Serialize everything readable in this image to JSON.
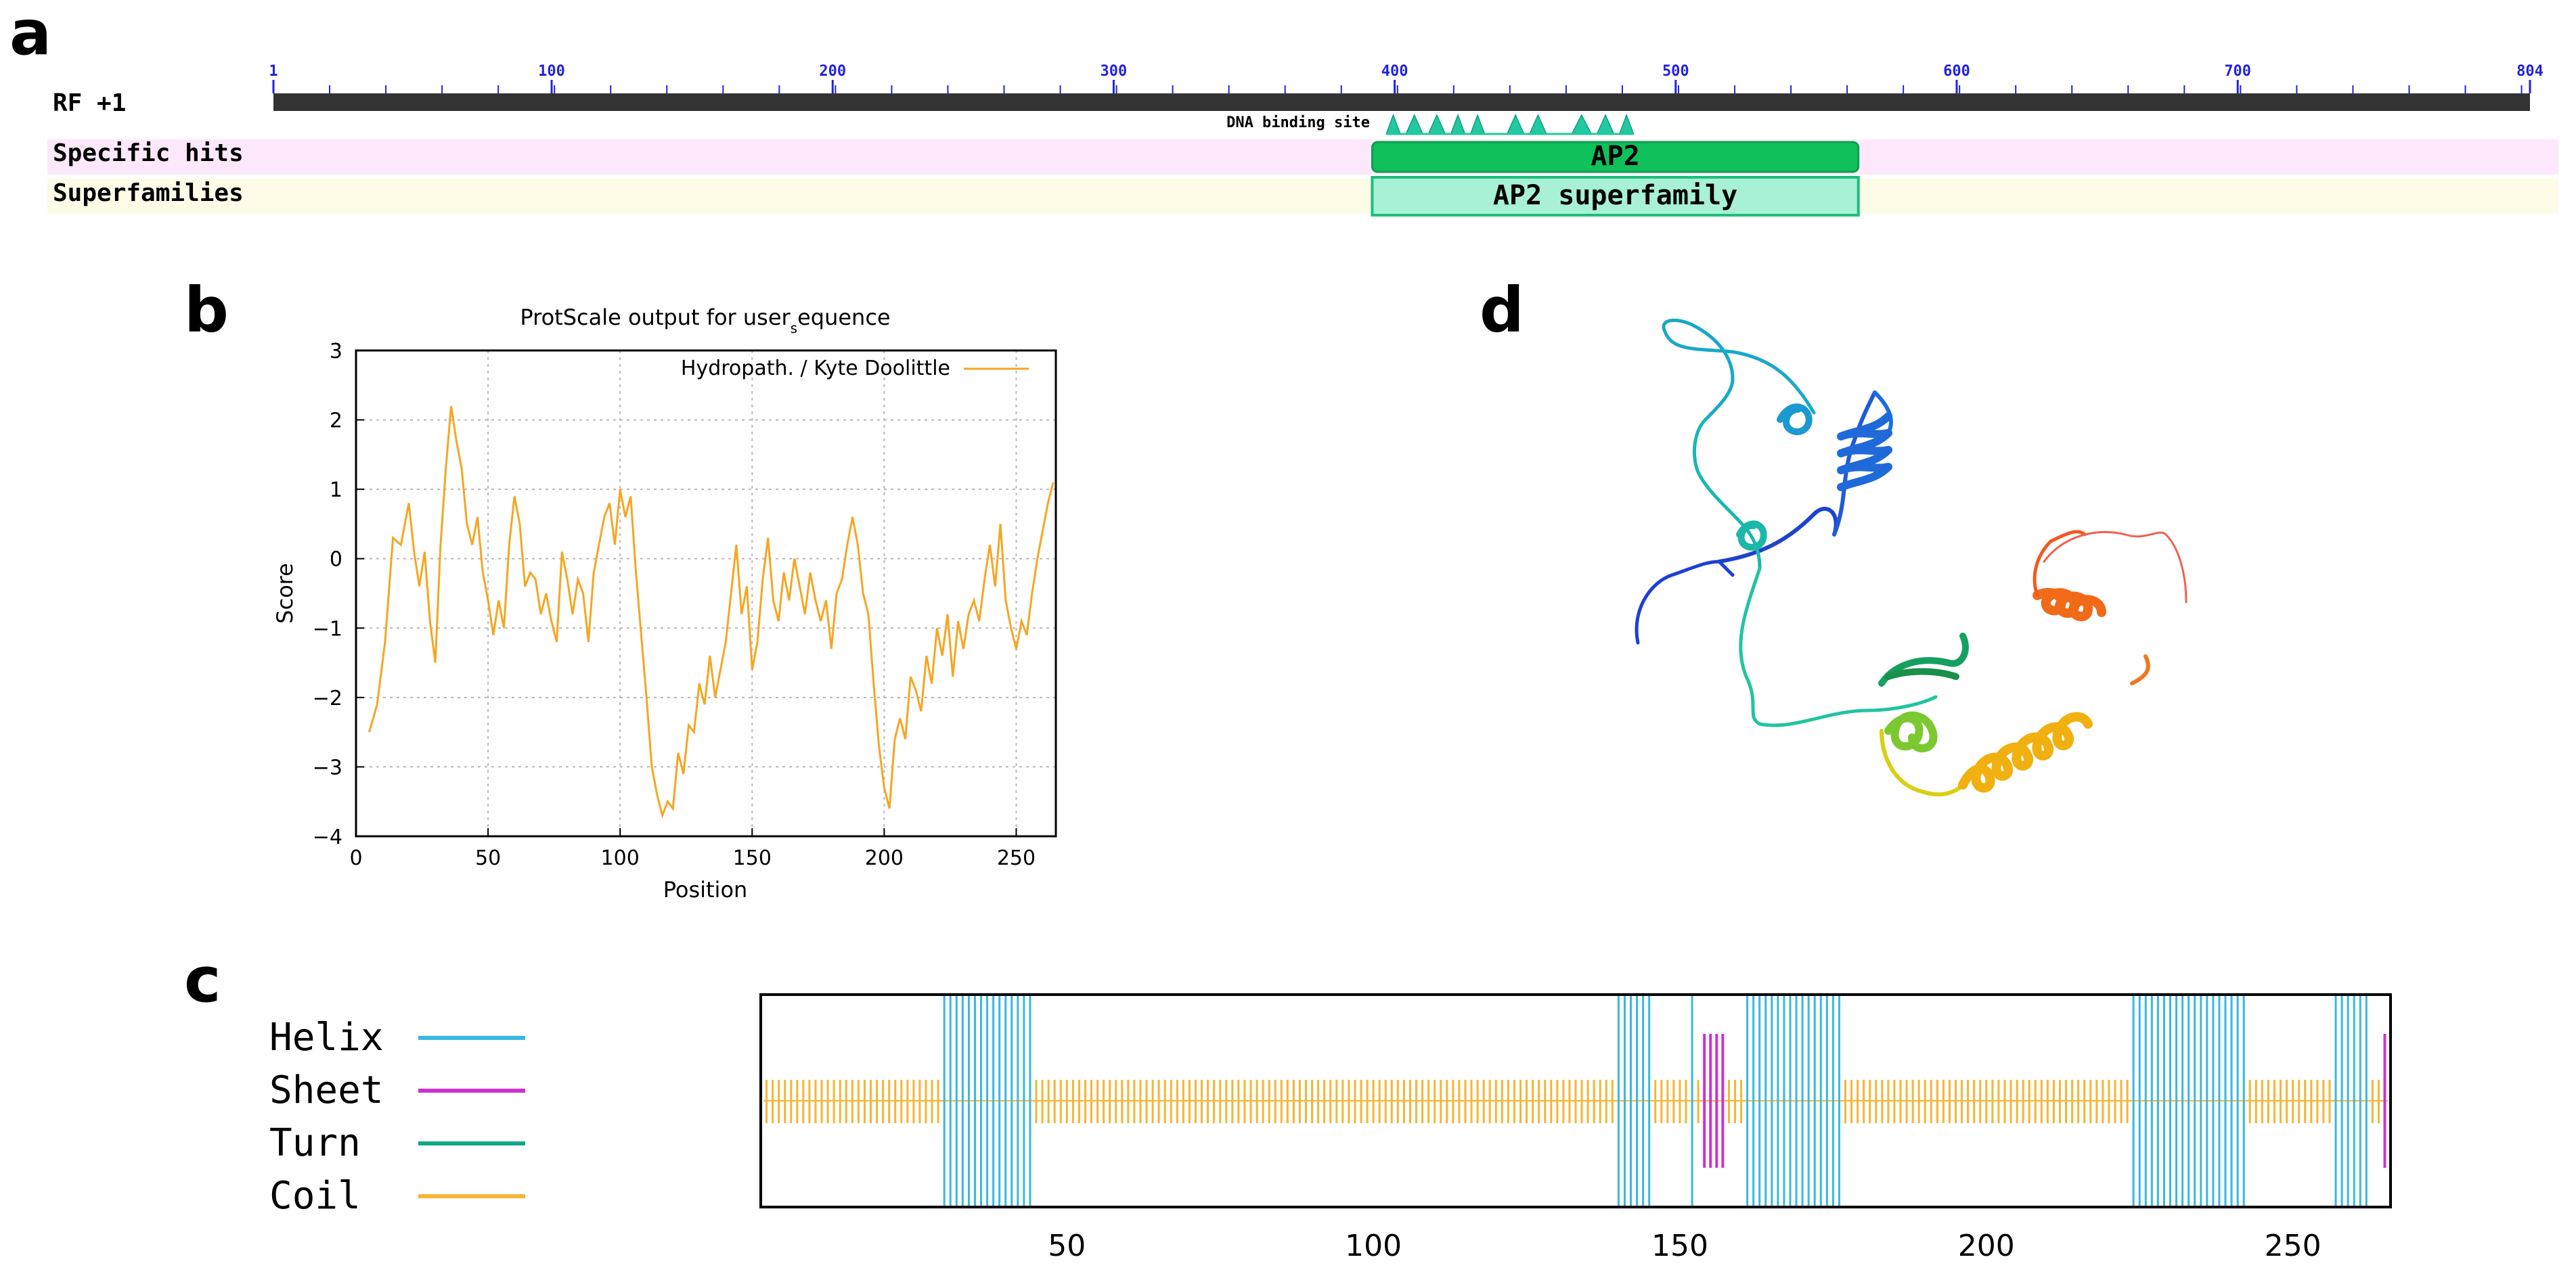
{
  "panel_a": {
    "letter": "a",
    "ruler_label": "RF +1",
    "ruler_ticks": [
      "1",
      "100",
      "200",
      "300",
      "400",
      "500",
      "600",
      "700",
      "804"
    ],
    "ruler_max": 804,
    "row_specific": "Specific hits",
    "row_super": "Superfamilies",
    "dna_label": "DNA binding site",
    "ap2_label": "AP2",
    "ap2_range": [
      392,
      565
    ],
    "super_label": "AP2 superfamily",
    "super_range": [
      392,
      565
    ],
    "dna_sites": [
      [
        397,
        402
      ],
      [
        404,
        410
      ],
      [
        412,
        418
      ],
      [
        420,
        425
      ],
      [
        427,
        432
      ],
      [
        440,
        446
      ],
      [
        448,
        454
      ],
      [
        463,
        470
      ],
      [
        472,
        478
      ],
      [
        480,
        485
      ]
    ],
    "colors": {
      "ap2": "#10c05a",
      "super": "#a8f0d6",
      "super_border": "#1ac07a",
      "site": "#22c8a0",
      "pink": "#fde8fb",
      "yellow": "#fefbe6"
    }
  },
  "panel_b": {
    "letter": "b",
    "title_main": "ProtScale output for user",
    "title_sub": "s",
    "title_tail": "equence",
    "legend": "Hydropath. / Kyte  Doolittle",
    "xlabel": "Position",
    "ylabel": "Score",
    "xticks": [
      "0",
      "50",
      "100",
      "150",
      "200",
      "250"
    ],
    "yticks": [
      "3",
      "2",
      "1",
      "0",
      "−1",
      "−2",
      "−3",
      "−4"
    ],
    "color": "#f5a623"
  },
  "chart_data": {
    "type": "line",
    "title": "ProtScale output for user_sequence",
    "xlabel": "Position",
    "ylabel": "Score",
    "xlim": [
      0,
      265
    ],
    "ylim": [
      -4,
      3
    ],
    "grid": true,
    "legend_position": "top-right",
    "series": [
      {
        "name": "Hydropath. / Kyte  Doolittle",
        "points": [
          [
            5,
            -2.5
          ],
          [
            8,
            -2.1
          ],
          [
            11,
            -1.2
          ],
          [
            14,
            0.3
          ],
          [
            17,
            0.2
          ],
          [
            20,
            0.8
          ],
          [
            22,
            0.1
          ],
          [
            24,
            -0.4
          ],
          [
            26,
            0.1
          ],
          [
            28,
            -0.9
          ],
          [
            30,
            -1.5
          ],
          [
            32,
            0.2
          ],
          [
            34,
            1.3
          ],
          [
            36,
            2.2
          ],
          [
            38,
            1.7
          ],
          [
            40,
            1.3
          ],
          [
            42,
            0.5
          ],
          [
            44,
            0.2
          ],
          [
            46,
            0.6
          ],
          [
            48,
            -0.2
          ],
          [
            50,
            -0.6
          ],
          [
            52,
            -1.1
          ],
          [
            54,
            -0.6
          ],
          [
            56,
            -1.0
          ],
          [
            58,
            0.2
          ],
          [
            60,
            0.9
          ],
          [
            62,
            0.5
          ],
          [
            64,
            -0.4
          ],
          [
            66,
            -0.2
          ],
          [
            68,
            -0.3
          ],
          [
            70,
            -0.8
          ],
          [
            72,
            -0.5
          ],
          [
            74,
            -0.9
          ],
          [
            76,
            -1.2
          ],
          [
            78,
            0.1
          ],
          [
            80,
            -0.3
          ],
          [
            82,
            -0.8
          ],
          [
            84,
            -0.3
          ],
          [
            86,
            -0.5
          ],
          [
            88,
            -1.2
          ],
          [
            90,
            -0.2
          ],
          [
            92,
            0.2
          ],
          [
            94,
            0.6
          ],
          [
            96,
            0.8
          ],
          [
            98,
            0.2
          ],
          [
            100,
            1.0
          ],
          [
            102,
            0.6
          ],
          [
            104,
            0.9
          ],
          [
            106,
            -0.2
          ],
          [
            108,
            -1.1
          ],
          [
            110,
            -2.0
          ],
          [
            112,
            -3.0
          ],
          [
            114,
            -3.4
          ],
          [
            116,
            -3.7
          ],
          [
            118,
            -3.5
          ],
          [
            120,
            -3.6
          ],
          [
            122,
            -2.8
          ],
          [
            124,
            -3.1
          ],
          [
            126,
            -2.4
          ],
          [
            128,
            -2.5
          ],
          [
            130,
            -1.8
          ],
          [
            132,
            -2.1
          ],
          [
            134,
            -1.4
          ],
          [
            136,
            -2.0
          ],
          [
            138,
            -1.6
          ],
          [
            140,
            -1.2
          ],
          [
            142,
            -0.5
          ],
          [
            144,
            0.2
          ],
          [
            146,
            -0.8
          ],
          [
            148,
            -0.4
          ],
          [
            150,
            -1.6
          ],
          [
            152,
            -1.2
          ],
          [
            154,
            -0.3
          ],
          [
            156,
            0.3
          ],
          [
            158,
            -0.6
          ],
          [
            160,
            -0.9
          ],
          [
            162,
            -0.2
          ],
          [
            164,
            -0.6
          ],
          [
            166,
            0.0
          ],
          [
            168,
            -0.4
          ],
          [
            170,
            -0.8
          ],
          [
            172,
            -0.2
          ],
          [
            174,
            -0.6
          ],
          [
            176,
            -0.9
          ],
          [
            178,
            -0.6
          ],
          [
            180,
            -1.3
          ],
          [
            182,
            -0.5
          ],
          [
            184,
            -0.3
          ],
          [
            186,
            0.2
          ],
          [
            188,
            0.6
          ],
          [
            190,
            0.2
          ],
          [
            192,
            -0.5
          ],
          [
            194,
            -0.8
          ],
          [
            196,
            -1.8
          ],
          [
            198,
            -2.7
          ],
          [
            200,
            -3.3
          ],
          [
            202,
            -3.6
          ],
          [
            204,
            -2.6
          ],
          [
            206,
            -2.3
          ],
          [
            208,
            -2.6
          ],
          [
            210,
            -1.7
          ],
          [
            212,
            -1.9
          ],
          [
            214,
            -2.2
          ],
          [
            216,
            -1.4
          ],
          [
            218,
            -1.8
          ],
          [
            220,
            -1.0
          ],
          [
            222,
            -1.4
          ],
          [
            224,
            -0.8
          ],
          [
            226,
            -1.7
          ],
          [
            228,
            -0.9
          ],
          [
            230,
            -1.3
          ],
          [
            232,
            -0.8
          ],
          [
            234,
            -0.6
          ],
          [
            236,
            -0.9
          ],
          [
            238,
            -0.3
          ],
          [
            240,
            0.2
          ],
          [
            242,
            -0.4
          ],
          [
            244,
            0.5
          ],
          [
            246,
            -0.6
          ],
          [
            248,
            -1.0
          ],
          [
            250,
            -1.3
          ],
          [
            252,
            -0.9
          ],
          [
            254,
            -1.1
          ],
          [
            256,
            -0.5
          ],
          [
            258,
            0.0
          ],
          [
            260,
            0.4
          ],
          [
            262,
            0.8
          ],
          [
            264,
            1.1
          ]
        ]
      }
    ]
  },
  "panel_c": {
    "letter": "c",
    "legend": [
      {
        "label": "Helix",
        "color": "#38b8e0"
      },
      {
        "label": "Sheet",
        "color": "#cc33cc"
      },
      {
        "label": "Turn",
        "color": "#10a888"
      },
      {
        "label": "Coil",
        "color": "#f5b535"
      }
    ],
    "xticks": [
      "50",
      "100",
      "150",
      "200",
      "250"
    ],
    "tick_values": [
      50,
      100,
      150,
      200,
      250
    ],
    "length": 265,
    "helix_ranges": [
      [
        30,
        44
      ],
      [
        140,
        145
      ],
      [
        152,
        152
      ],
      [
        161,
        176
      ],
      [
        224,
        242
      ],
      [
        257,
        262
      ]
    ],
    "sheet_ranges": [
      [
        154,
        157
      ],
      [
        265,
        265
      ]
    ]
  },
  "panel_d": {
    "letter": "d"
  }
}
